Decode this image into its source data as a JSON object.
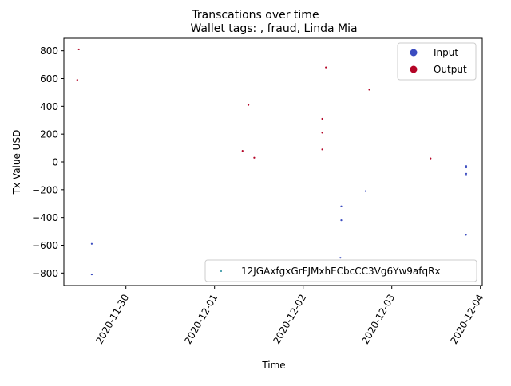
{
  "chart_data": {
    "type": "scatter",
    "suptitle": "Transcations over time",
    "title": "Wallet tags: , fraud, Linda Mia",
    "xlabel": "Time",
    "ylabel": "Tx Value USD",
    "x_ticks": [
      "2020-11-30",
      "2020-12-01",
      "2020-12-02",
      "2020-12-03",
      "2020-12-04"
    ],
    "x_range": [
      "2020-11-29 07:12",
      "2020-12-04 00:30"
    ],
    "y_ticks": [
      800,
      600,
      400,
      200,
      0,
      -200,
      -400,
      -600,
      -800
    ],
    "ylim": [
      -890,
      890
    ],
    "grid": false,
    "legend_top": {
      "placement": "top-right",
      "entries": [
        {
          "label": "Input",
          "color": "#3b4cc0"
        },
        {
          "label": "Output",
          "color": "#b40426"
        }
      ]
    },
    "legend_bottom": {
      "placement": "bottom-right",
      "entries": [
        {
          "label": "12JGAxfgxGrFJMxhECbcCC3Vg6Yw9afqRx",
          "color": "#1f8a9a"
        }
      ]
    },
    "colors": {
      "input": "#3b4cc0",
      "output": "#b40426"
    },
    "series": [
      {
        "name": "Output",
        "points": [
          {
            "x": "2020-11-29 11:15",
            "y": 810
          },
          {
            "x": "2020-11-29 10:50",
            "y": 590
          },
          {
            "x": "2020-12-01 07:35",
            "y": 80
          },
          {
            "x": "2020-12-01 09:10",
            "y": 410
          },
          {
            "x": "2020-12-01 10:45",
            "y": 30
          },
          {
            "x": "2020-12-02 05:10",
            "y": 310
          },
          {
            "x": "2020-12-02 05:10",
            "y": 210
          },
          {
            "x": "2020-12-02 05:10",
            "y": 90
          },
          {
            "x": "2020-12-02 06:10",
            "y": 680
          },
          {
            "x": "2020-12-02 17:55",
            "y": 520
          },
          {
            "x": "2020-12-03 10:30",
            "y": 25
          }
        ]
      },
      {
        "name": "Input",
        "points": [
          {
            "x": "2020-11-29 14:45",
            "y": -590
          },
          {
            "x": "2020-11-29 14:45",
            "y": -810
          },
          {
            "x": "2020-12-02 10:20",
            "y": -320
          },
          {
            "x": "2020-12-02 10:20",
            "y": -420
          },
          {
            "x": "2020-12-02 10:05",
            "y": -690
          },
          {
            "x": "2020-12-02 16:55",
            "y": -210
          },
          {
            "x": "2020-12-03 20:10",
            "y": -30
          },
          {
            "x": "2020-12-03 20:10",
            "y": -40
          },
          {
            "x": "2020-12-03 20:10",
            "y": -85
          },
          {
            "x": "2020-12-03 20:10",
            "y": -95
          },
          {
            "x": "2020-12-03 20:05",
            "y": -525
          }
        ]
      }
    ]
  }
}
